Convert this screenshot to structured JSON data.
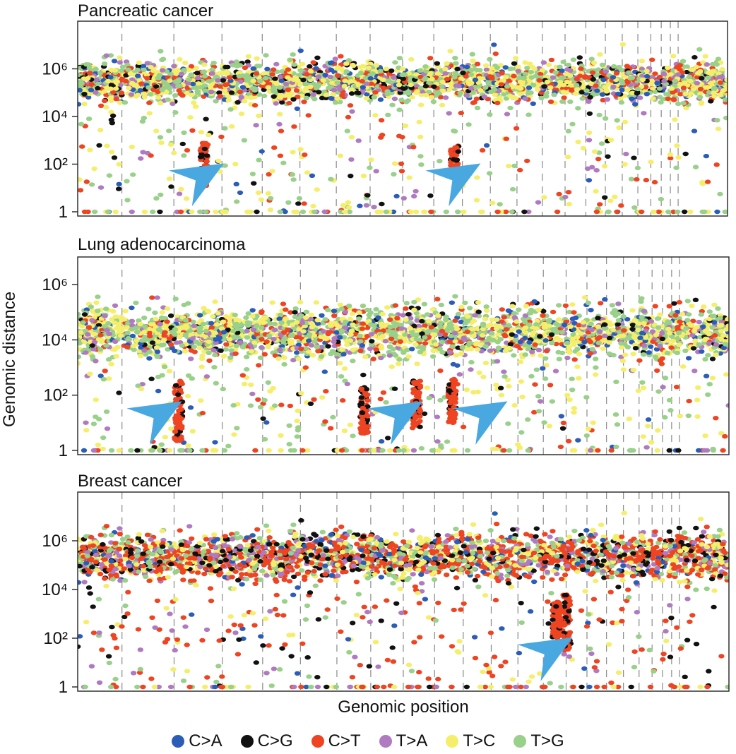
{
  "figure": {
    "ylabel": "Genomic distance",
    "xlabel": "Genomic position"
  },
  "legend": [
    {
      "label": "C>A",
      "color": "#2b5db8"
    },
    {
      "label": "C>G",
      "color": "#111111"
    },
    {
      "label": "C>T",
      "color": "#ee4422"
    },
    {
      "label": "T>A",
      "color": "#b07ac0"
    },
    {
      "label": "T>C",
      "color": "#f5ee6a"
    },
    {
      "label": "T>G",
      "color": "#99d08a"
    }
  ],
  "chart_data": [
    {
      "type": "scatter",
      "title": "Pancreatic cancer",
      "xlabel": "Genomic position",
      "ylabel": "Genomic distance",
      "yscale": "log10",
      "ylim": [
        1,
        100000000
      ],
      "yticks": [
        {
          "value": 1,
          "label": "1"
        },
        {
          "value": 100,
          "label": "10²"
        },
        {
          "value": 10000,
          "label": "10⁴"
        },
        {
          "value": 1000000,
          "label": "10⁶"
        }
      ],
      "chromosome_boundaries": [
        0.068,
        0.148,
        0.222,
        0.284,
        0.342,
        0.398,
        0.45,
        0.5,
        0.548,
        0.592,
        0.635,
        0.676,
        0.715,
        0.75,
        0.782,
        0.812,
        0.838,
        0.862,
        0.882,
        0.898,
        0.912,
        0.924
      ],
      "band": {
        "center_log": 5.45,
        "spread_log": 0.75
      },
      "kataegis_arrows": [
        0.165,
        0.56
      ],
      "clusters": [
        {
          "x": 0.195,
          "low_log": 1.0,
          "high_log": 2.9
        },
        {
          "x": 0.58,
          "low_log": 1.5,
          "high_log": 2.8
        }
      ]
    },
    {
      "type": "scatter",
      "title": "Lung adenocarcinoma",
      "xlabel": "Genomic position",
      "ylabel": "Genomic distance",
      "yscale": "log10",
      "ylim": [
        1,
        10000000
      ],
      "yticks": [
        {
          "value": 1,
          "label": "1"
        },
        {
          "value": 100,
          "label": "10²"
        },
        {
          "value": 10000,
          "label": "10⁴"
        },
        {
          "value": 1000000,
          "label": "10⁶"
        }
      ],
      "chromosome_boundaries": [
        0.068,
        0.148,
        0.222,
        0.284,
        0.342,
        0.398,
        0.45,
        0.5,
        0.548,
        0.592,
        0.635,
        0.676,
        0.715,
        0.75,
        0.782,
        0.812,
        0.838,
        0.862,
        0.882,
        0.898,
        0.912,
        0.924
      ],
      "band": {
        "center_log": 4.25,
        "spread_log": 0.8
      },
      "kataegis_arrows": [
        0.1,
        0.47,
        0.6
      ],
      "clusters": [
        {
          "x": 0.155,
          "low_log": 0.3,
          "high_log": 2.6
        },
        {
          "x": 0.44,
          "low_log": 0.6,
          "high_log": 2.3
        },
        {
          "x": 0.52,
          "low_log": 0.8,
          "high_log": 2.6
        },
        {
          "x": 0.575,
          "low_log": 1.0,
          "high_log": 2.6
        }
      ]
    },
    {
      "type": "scatter",
      "title": "Breast cancer",
      "xlabel": "Genomic position",
      "ylabel": "Genomic distance",
      "yscale": "log10",
      "ylim": [
        1,
        100000000
      ],
      "yticks": [
        {
          "value": 1,
          "label": "1"
        },
        {
          "value": 100,
          "label": "10²"
        },
        {
          "value": 10000,
          "label": "10⁴"
        },
        {
          "value": 1000000,
          "label": "10⁶"
        }
      ],
      "chromosome_boundaries": [
        0.068,
        0.148,
        0.222,
        0.284,
        0.342,
        0.398,
        0.45,
        0.5,
        0.548,
        0.592,
        0.635,
        0.676,
        0.715,
        0.75,
        0.782,
        0.812,
        0.838,
        0.862,
        0.882,
        0.898,
        0.912,
        0.924
      ],
      "band": {
        "center_log": 5.35,
        "spread_log": 0.85
      },
      "kataegis_arrows": [
        0.7
      ],
      "clusters": [
        {
          "x": 0.75,
          "low_log": 1.5,
          "high_log": 3.8
        },
        {
          "x": 0.735,
          "low_log": 2.0,
          "high_log": 3.5
        }
      ]
    }
  ]
}
